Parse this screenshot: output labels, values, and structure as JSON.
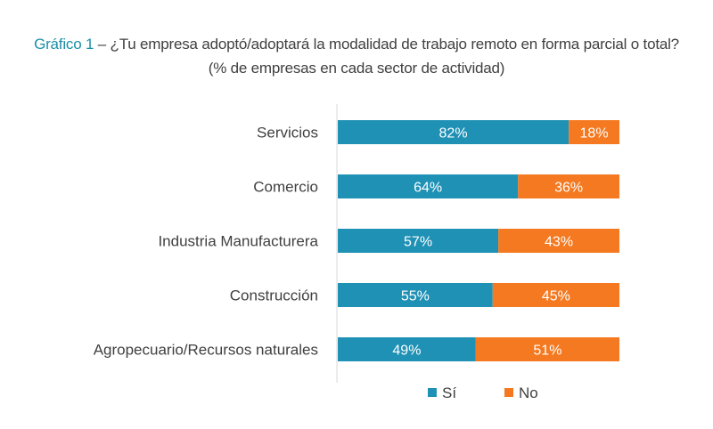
{
  "chart_data": {
    "type": "bar",
    "orientation": "horizontal",
    "stacked": true,
    "title_prefix": "Gráfico 1",
    "title": " – ¿Tu empresa adoptó/adoptará la modalidad de trabajo remoto en forma parcial o total?",
    "subtitle": "(% de empresas en cada sector de actividad)",
    "categories": [
      "Servicios",
      "Comercio",
      "Industria Manufacturera",
      "Construcción",
      "Agropecuario/Recursos naturales"
    ],
    "series": [
      {
        "name": "Sí",
        "color": "#1f91b5",
        "values": [
          82,
          64,
          57,
          55,
          49
        ],
        "labels": [
          "82%",
          "64%",
          "57%",
          "55%",
          "49%"
        ]
      },
      {
        "name": "No",
        "color": "#f47920",
        "values": [
          18,
          36,
          43,
          45,
          51
        ],
        "labels": [
          "18%",
          "36%",
          "43%",
          "45%",
          "51%"
        ]
      }
    ],
    "xlim": [
      0,
      100
    ],
    "grid": false,
    "legend_position": "bottom"
  }
}
